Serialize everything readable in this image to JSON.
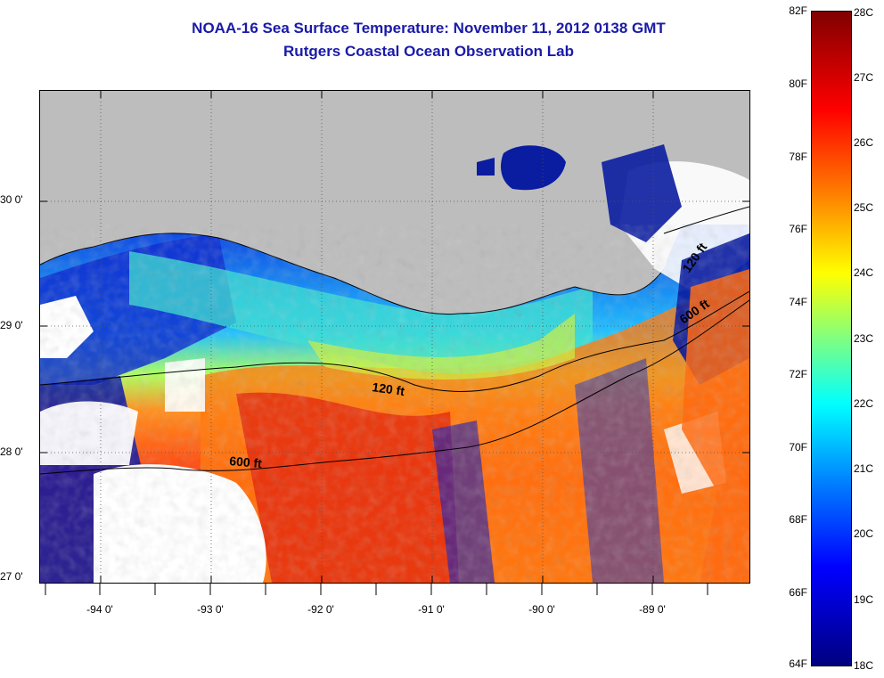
{
  "title": "NOAA-16 Sea Surface Temperature:  November 11, 2012 0138 GMT",
  "subtitle": "Rutgers Coastal Ocean Observation Lab",
  "map": {
    "lat_labels": [
      "30 0'",
      "29 0'",
      "28 0'",
      "27 0'"
    ],
    "lon_labels": [
      "-94 0'",
      "-93 0'",
      "-92 0'",
      "-91 0'",
      "-90 0'",
      "-89 0'"
    ],
    "contour_labels": [
      "120 ft",
      "600 ft",
      "120 ft",
      "600 ft"
    ],
    "colors": {
      "land": "#bdbdbd",
      "cloud": "#ffffff",
      "cold": "#0000c8",
      "mid": "#00e0ff",
      "warm": "#ff7a10",
      "hot": "#d01010"
    }
  },
  "colorbar": {
    "fahrenheit": [
      "82F",
      "80F",
      "78F",
      "76F",
      "74F",
      "72F",
      "70F",
      "68F",
      "66F",
      "64F"
    ],
    "celsius": [
      "28C",
      "27C",
      "26C",
      "25C",
      "24C",
      "23C",
      "22C",
      "21C",
      "20C",
      "19C",
      "18C"
    ]
  }
}
